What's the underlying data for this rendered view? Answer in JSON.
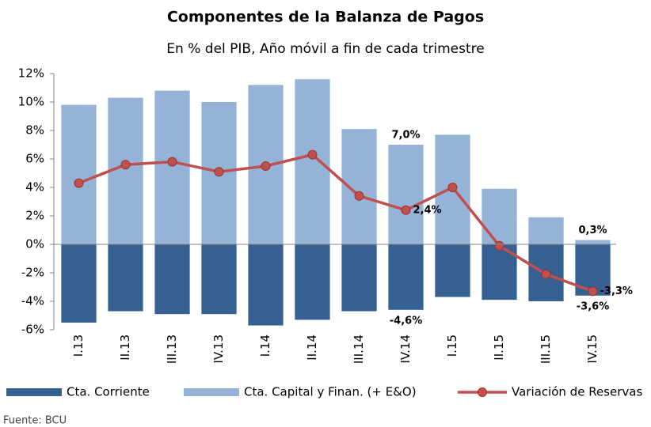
{
  "chart_data": {
    "type": "bar",
    "title": "Componentes de la Balanza de Pagos",
    "subtitle": "En % del PIB, Año móvil a fin de cada trimestre",
    "source": "Fuente: BCU",
    "categories": [
      "I.13",
      "II.13",
      "III.13",
      "IV.13",
      "I.14",
      "II.14",
      "III.14",
      "IV.14",
      "I.15",
      "II.15",
      "III.15",
      "IV.15"
    ],
    "series": [
      {
        "name": "Cta. Corriente",
        "type": "bar",
        "color": "#376092",
        "label_color": "#376092",
        "values": [
          -5.5,
          -4.7,
          -4.9,
          -4.9,
          -5.7,
          -5.3,
          -4.7,
          -4.6,
          -3.7,
          -3.9,
          -4.0,
          -3.6
        ],
        "value_labels": [
          null,
          null,
          null,
          null,
          null,
          null,
          null,
          "-4,6%",
          null,
          null,
          null,
          "-3,6%"
        ]
      },
      {
        "name": "Cta. Capital y Finan. (+ E&O)",
        "type": "bar",
        "color": "#95b3d7",
        "label_color": "#558ed5",
        "values": [
          9.8,
          10.3,
          10.8,
          10.0,
          11.2,
          11.6,
          8.1,
          7.0,
          7.7,
          3.9,
          1.9,
          0.3
        ],
        "value_labels": [
          null,
          null,
          null,
          null,
          null,
          null,
          null,
          "7,0%",
          null,
          null,
          null,
          "0,3%"
        ]
      },
      {
        "name": "Variación de Reservas",
        "type": "line",
        "color": "#c0504d",
        "label_color": "#c00000",
        "values": [
          4.3,
          5.6,
          5.8,
          5.1,
          5.5,
          6.3,
          3.4,
          2.4,
          4.0,
          -0.1,
          -2.1,
          -3.3
        ],
        "value_labels": [
          null,
          null,
          null,
          null,
          null,
          null,
          null,
          "2,4%",
          null,
          null,
          null,
          "-3,3%"
        ]
      }
    ],
    "ylim": [
      -6,
      12
    ],
    "yticks": [
      {
        "value": -6,
        "label": "-6%"
      },
      {
        "value": -4,
        "label": "-4%"
      },
      {
        "value": -2,
        "label": "-2%"
      },
      {
        "value": 0,
        "label": "0%"
      },
      {
        "value": 2,
        "label": "2%"
      },
      {
        "value": 4,
        "label": "4%"
      },
      {
        "value": 6,
        "label": "6%"
      },
      {
        "value": 8,
        "label": "8%"
      },
      {
        "value": 10,
        "label": "10%"
      },
      {
        "value": 12,
        "label": "12%"
      }
    ]
  }
}
